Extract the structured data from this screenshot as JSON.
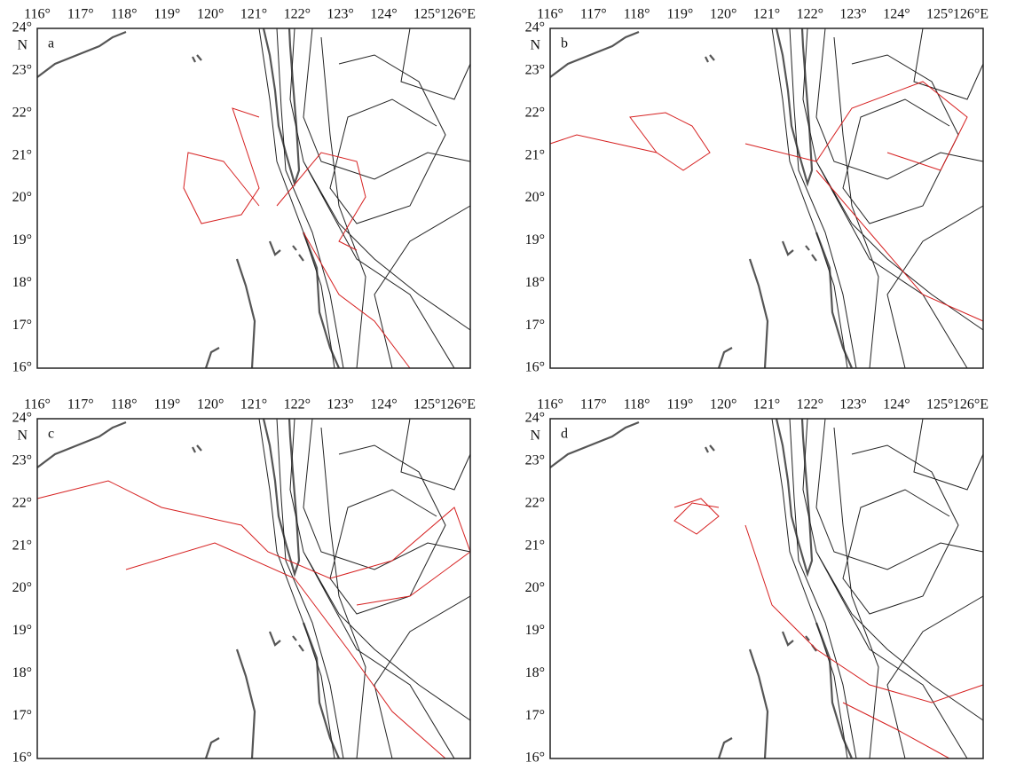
{
  "lon_labels": [
    "116°",
    "117°",
    "118°",
    "119°",
    "120°",
    "121°",
    "122°",
    "123°",
    "124°",
    "125°",
    "126°E"
  ],
  "lat_labels": [
    "24°",
    "23°",
    "22°",
    "21°",
    "20°",
    "19°",
    "18°",
    "17°",
    "16°"
  ],
  "hemisphere": "N",
  "panels": [
    {
      "label": "a"
    },
    {
      "label": "b"
    },
    {
      "label": "c"
    },
    {
      "label": "d"
    }
  ]
}
